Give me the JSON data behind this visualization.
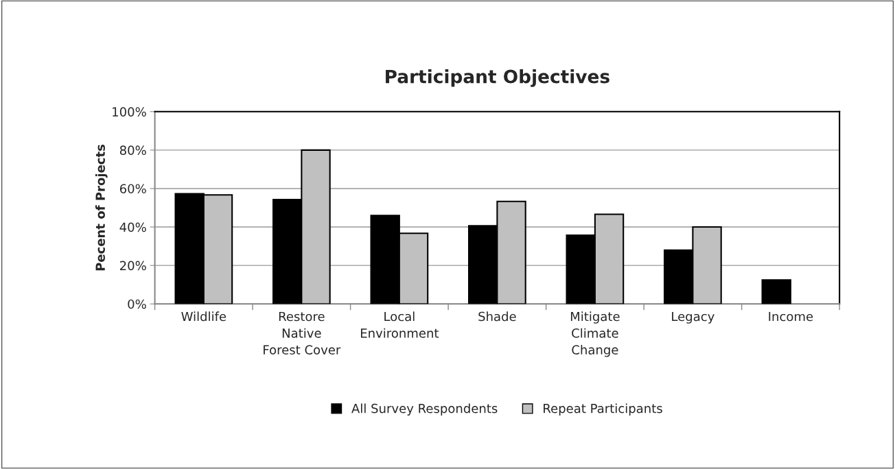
{
  "chart_data": {
    "type": "bar",
    "title": "Participant Objectives",
    "ylabel": "Pecent of Projects",
    "categories": [
      "Wildlife",
      "Restore\nNative\nForest Cover",
      "Local\nEnvironment",
      "Shade",
      "Mitigate\nClimate\nChange",
      "Legacy",
      "Income"
    ],
    "series": [
      {
        "name": "All Survey Respondents",
        "color": "#000000",
        "values": [
          57.3,
          54.3,
          46.0,
          40.6,
          35.7,
          28.0,
          12.5
        ]
      },
      {
        "name": "Repeat Participants",
        "color": "#c0c0c0",
        "values": [
          56.7,
          80.0,
          36.7,
          53.3,
          46.6,
          40.0,
          null
        ]
      }
    ],
    "ylim": [
      0,
      100
    ],
    "yticks": [
      {
        "value": 0,
        "label": "0%"
      },
      {
        "value": 20,
        "label": "20%"
      },
      {
        "value": 40,
        "label": "40%"
      },
      {
        "value": 60,
        "label": "60%"
      },
      {
        "value": 80,
        "label": "80%"
      },
      {
        "value": 100,
        "label": "100%"
      }
    ],
    "grid": "y",
    "legend": "bottom"
  }
}
